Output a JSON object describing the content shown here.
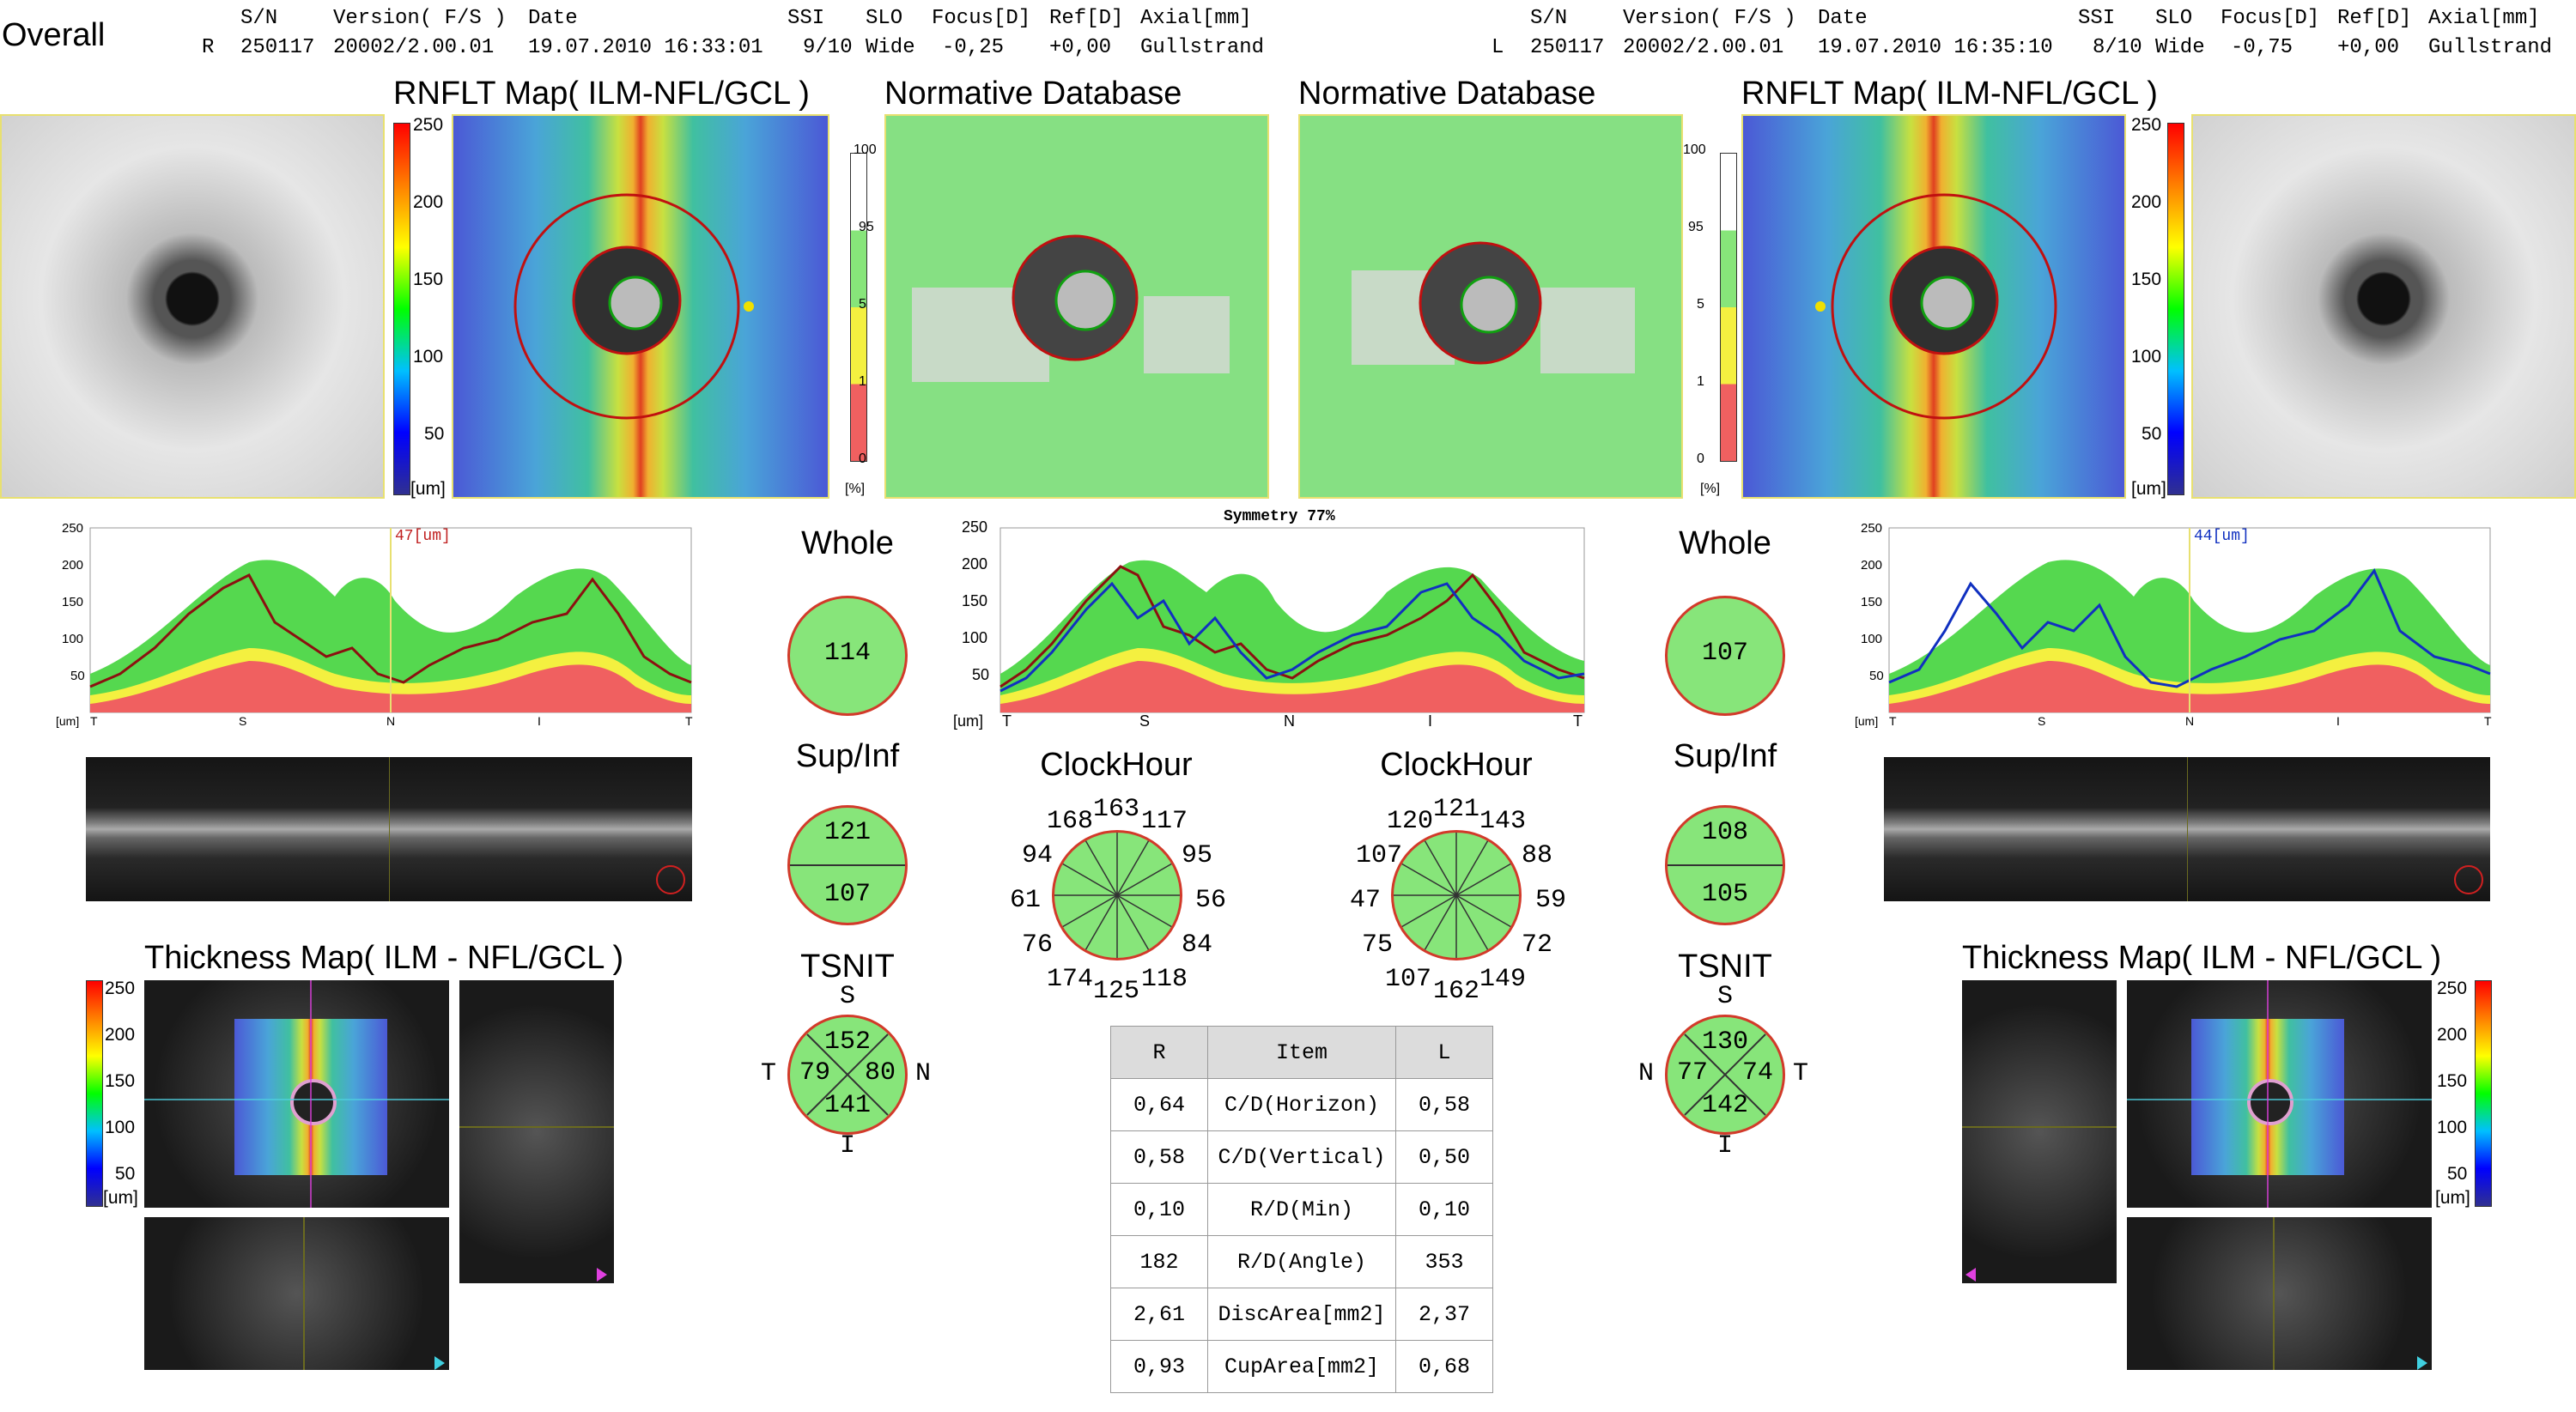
{
  "page_title": "Overall",
  "header": {
    "columns": [
      "S/N",
      "Version( F/S )",
      "Date",
      "SSI",
      "SLO",
      "Focus[D]",
      "Ref[D]",
      "Axial[mm]"
    ],
    "right_eye": {
      "eye": "R",
      "sn": "250117",
      "version": "20002/2.00.01",
      "date": "19.07.2010 16:33:01",
      "ssi": "9/10",
      "slo": "Wide",
      "focus": "-0,25",
      "ref": "+0,00",
      "axial": "Gullstrand"
    },
    "left_eye": {
      "eye": "L",
      "sn": "250117",
      "version": "20002/2.00.01",
      "date": "19.07.2010 16:35:10",
      "ssi": "8/10",
      "slo": "Wide",
      "focus": "-0,75",
      "ref": "+0,00",
      "axial": "Gullstrand"
    }
  },
  "panels": {
    "rnflt_title": "RNFLT Map( ILM-NFL/GCL )",
    "normative_title": "Normative Database",
    "thickness_title": "Thickness Map( ILM - NFL/GCL )",
    "color_scale": [
      "250",
      "200",
      "150",
      "100",
      "50",
      "[um]"
    ],
    "pct_scale": [
      "100",
      "95",
      "5",
      "1",
      "0",
      "[%]"
    ],
    "symmetry": "Symmetry 77%"
  },
  "graphs": {
    "right_marker": "47[um]",
    "left_marker": "44[um]",
    "y_ticks": [
      "250",
      "200",
      "150",
      "100",
      "50"
    ],
    "unit": "[um]",
    "x_ticks": [
      "T",
      "S",
      "N",
      "I",
      "T"
    ]
  },
  "right": {
    "whole_label": "Whole",
    "whole": "114",
    "supinf_label": "Sup/Inf",
    "sup": "121",
    "inf": "107",
    "clock_label": "ClockHour",
    "clock": [
      "163",
      "117",
      "95",
      "56",
      "84",
      "118",
      "125",
      "174",
      "76",
      "61",
      "94",
      "168"
    ],
    "tsnit_label": "TSNIT",
    "s": "152",
    "t": "79",
    "n": "80",
    "i": "141",
    "s_lbl": "S",
    "t_lbl": "T",
    "n_lbl": "N",
    "i_lbl": "I"
  },
  "left": {
    "whole_label": "Whole",
    "whole": "107",
    "supinf_label": "Sup/Inf",
    "sup": "108",
    "inf": "105",
    "clock_label": "ClockHour",
    "clock": [
      "121",
      "143",
      "88",
      "59",
      "72",
      "149",
      "162",
      "107",
      "75",
      "47",
      "107",
      "120"
    ],
    "tsnit_label": "TSNIT",
    "s": "130",
    "t": "74",
    "n": "77",
    "i": "142",
    "s_lbl": "S",
    "t_lbl": "T",
    "n_lbl": "N",
    "i_lbl": "I"
  },
  "table": {
    "headers": [
      "R",
      "Item",
      "L"
    ],
    "rows": [
      [
        "0,64",
        "C/D(Horizon)",
        "0,58"
      ],
      [
        "0,58",
        "C/D(Vertical)",
        "0,50"
      ],
      [
        "0,10",
        "R/D(Min)",
        "0,10"
      ],
      [
        "182",
        "R/D(Angle)",
        "353"
      ],
      [
        "2,61",
        "DiscArea[mm2]",
        "2,37"
      ],
      [
        "0,93",
        "CupArea[mm2]",
        "0,68"
      ]
    ]
  },
  "colors": {
    "green": "#87e57a",
    "red": "#d23a2a",
    "yellow": "#f4f040",
    "pink": "#f06060",
    "od_line": "#8b1010",
    "os_line": "#1030c0"
  }
}
